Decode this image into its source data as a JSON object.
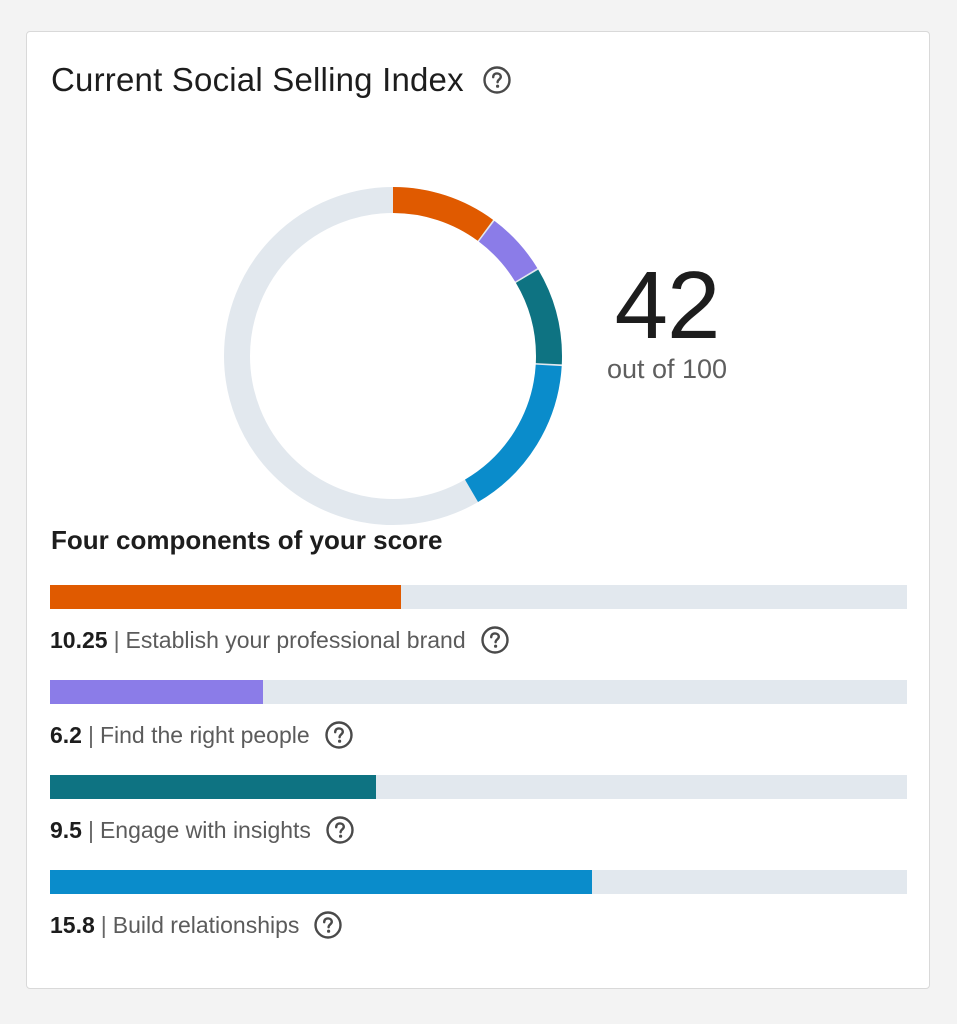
{
  "card": {
    "title": "Current Social Selling Index",
    "help_icon": "question-circle-icon"
  },
  "score": {
    "value": "42",
    "max_label": "out of 100",
    "value_num": 42,
    "max_num": 100
  },
  "components_heading": "Four components of your score",
  "separator": "|",
  "track_color": "#e2e8ee",
  "components": [
    {
      "value": "10.25",
      "label": "Establish your professional brand",
      "score": 10.25,
      "max": 25,
      "color": "#e05a00"
    },
    {
      "value": "6.2",
      "label": "Find the right people",
      "score": 6.2,
      "max": 25,
      "color": "#8b7ce8"
    },
    {
      "value": "9.5",
      "label": "Engage with insights",
      "score": 9.5,
      "max": 25,
      "color": "#0e7382"
    },
    {
      "value": "15.8",
      "label": "Build relationships",
      "score": 15.8,
      "max": 25,
      "color": "#0a8ccb"
    }
  ]
}
